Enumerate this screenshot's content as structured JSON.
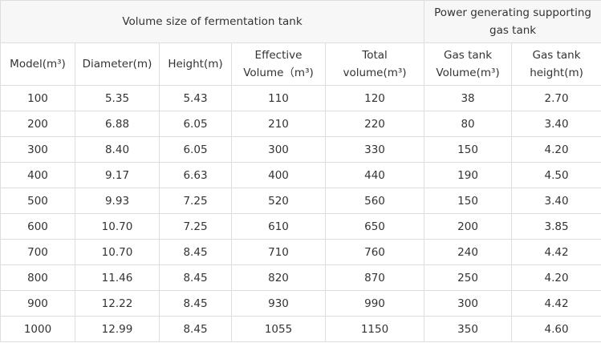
{
  "header": {
    "group_titles": [
      "Volume size of fermentation tank",
      "Power generating supporting gas tank"
    ],
    "columns": [
      "Model(m³)",
      "Diameter(m)",
      "Height(m)",
      "Effective Volume（m³)",
      "Total volume(m³)",
      "Gas tank Volume(m³)",
      "Gas tank height(m)"
    ]
  },
  "table": {
    "rows": [
      [
        "100",
        "5.35",
        "5.43",
        "110",
        "120",
        "38",
        "2.70"
      ],
      [
        "200",
        "6.88",
        "6.05",
        "210",
        "220",
        "80",
        "3.40"
      ],
      [
        "300",
        "8.40",
        "6.05",
        "300",
        "330",
        "150",
        "4.20"
      ],
      [
        "400",
        "9.17",
        "6.63",
        "400",
        "440",
        "190",
        "4.50"
      ],
      [
        "500",
        "9.93",
        "7.25",
        "520",
        "560",
        "150",
        "3.40"
      ],
      [
        "600",
        "10.70",
        "7.25",
        "610",
        "650",
        "200",
        "3.85"
      ],
      [
        "700",
        "10.70",
        "8.45",
        "710",
        "760",
        "240",
        "4.42"
      ],
      [
        "800",
        "11.46",
        "8.45",
        "820",
        "870",
        "250",
        "4.20"
      ],
      [
        "900",
        "12.22",
        "8.45",
        "930",
        "990",
        "300",
        "4.42"
      ],
      [
        "1000",
        "12.99",
        "8.45",
        "1055",
        "1150",
        "350",
        "4.60"
      ]
    ]
  }
}
